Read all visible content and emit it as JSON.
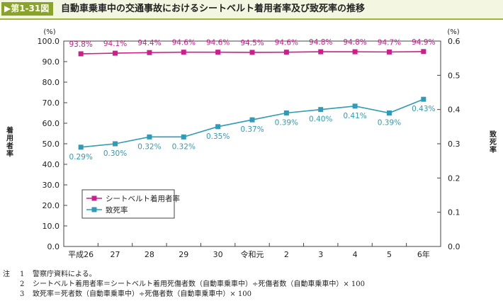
{
  "figure": {
    "badge": "▶第1-31図",
    "title": "自動車乗車中の交通事故におけるシートベルト着用者率及び致死率の推移"
  },
  "chart_data": {
    "type": "line",
    "categories": [
      "平成26",
      "27",
      "28",
      "29",
      "30",
      "令和元",
      "2",
      "3",
      "4",
      "5",
      "6年"
    ],
    "y_left": {
      "label": "着用者率",
      "unit": "(%)",
      "range": [
        0,
        100
      ],
      "ticks": [
        "0.0",
        "10.0",
        "20.0",
        "30.0",
        "40.0",
        "50.0",
        "60.0",
        "70.0",
        "80.0",
        "90.0",
        "100.0"
      ]
    },
    "y_right": {
      "label": "致死率",
      "unit": "(%)",
      "range": [
        0,
        0.6
      ],
      "ticks": [
        "0.0",
        "0.1",
        "0.2",
        "0.3",
        "0.4",
        "0.5",
        "0.6"
      ]
    },
    "series": [
      {
        "name": "シートベルト着用者率",
        "axis": "left",
        "color": "#cc1f8a",
        "values": [
          93.8,
          94.1,
          94.4,
          94.6,
          94.6,
          94.5,
          94.6,
          94.8,
          94.8,
          94.7,
          94.9
        ],
        "labels": [
          "93.8%",
          "94.1%",
          "94.4%",
          "94.6%",
          "94.6%",
          "94.5%",
          "94.6%",
          "94.8%",
          "94.8%",
          "94.7%",
          "94.9%"
        ]
      },
      {
        "name": "致死率",
        "axis": "right",
        "color": "#2f9bb6",
        "values": [
          0.29,
          0.3,
          0.32,
          0.32,
          0.35,
          0.37,
          0.39,
          0.4,
          0.41,
          0.39,
          0.43
        ],
        "labels": [
          "0.29%",
          "0.30%",
          "0.32%",
          "0.32%",
          "0.35%",
          "0.37%",
          "0.39%",
          "0.40%",
          "0.41%",
          "0.39%",
          "0.43%"
        ]
      }
    ],
    "legend_position": "bottom-left",
    "grid": false
  },
  "notes": {
    "label": "注",
    "items": [
      {
        "num": "1",
        "text": "警察庁資料による。"
      },
      {
        "num": "2",
        "text": "シートベルト着用者率＝シートベルト着用死傷者数（自動車乗車中）÷死傷者数（自動車乗車中）× 100"
      },
      {
        "num": "3",
        "text": "致死率＝死者数（自動車乗車中）÷死傷者数（自動車乗車中）× 100"
      }
    ]
  }
}
